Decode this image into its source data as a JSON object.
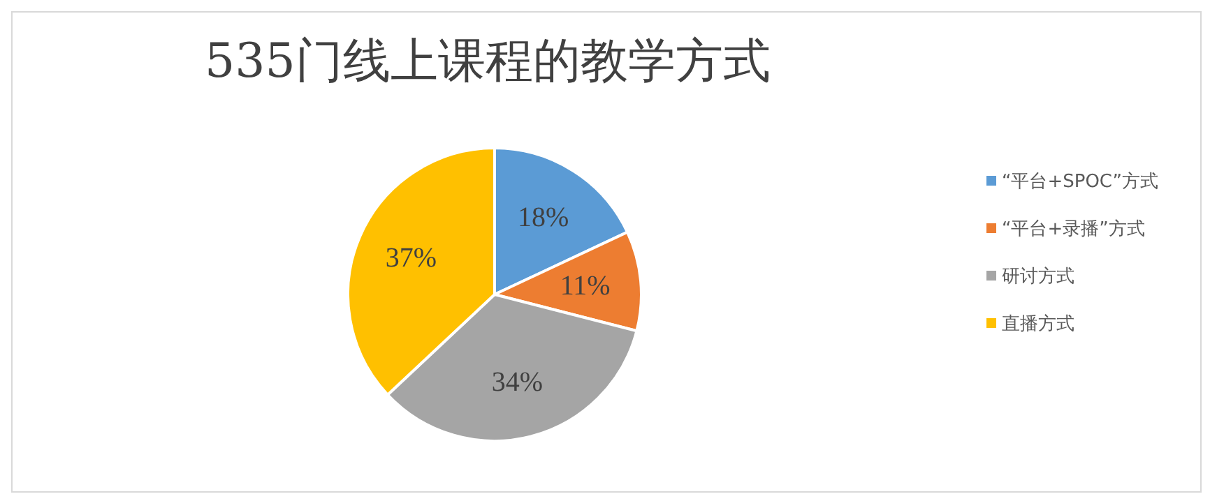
{
  "chart_data": {
    "type": "pie",
    "title": "535门线上课程的教学方式",
    "categories": [
      "“平台+SPOC”方式",
      "“平台+录播”方式",
      "研讨方式",
      "直播方式"
    ],
    "values": [
      18,
      11,
      34,
      37
    ],
    "value_labels": [
      "18%",
      "11%",
      "34%",
      "37%"
    ],
    "colors": [
      "#5b9bd5",
      "#ed7d31",
      "#a5a5a5",
      "#ffc000"
    ],
    "legend": "right"
  }
}
